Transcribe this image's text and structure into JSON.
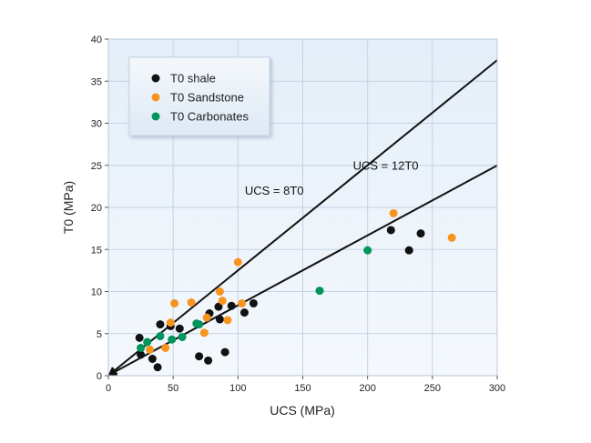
{
  "chart_data": {
    "type": "scatter",
    "title": "",
    "xlabel": "UCS (MPa)",
    "ylabel": "T0 (MPa)",
    "xlim": [
      0,
      300
    ],
    "ylim": [
      0,
      40
    ],
    "xticks": [
      0,
      50,
      100,
      150,
      200,
      250,
      300
    ],
    "yticks": [
      0,
      5,
      10,
      15,
      20,
      25,
      30,
      35,
      40
    ],
    "grid": true,
    "legend_position": "top-left",
    "series": [
      {
        "name": "T0 shale",
        "color": "#111111",
        "points": [
          {
            "x": 24,
            "y": 4.5
          },
          {
            "x": 25,
            "y": 2.5
          },
          {
            "x": 34,
            "y": 2.0
          },
          {
            "x": 38,
            "y": 1.0
          },
          {
            "x": 40,
            "y": 6.1
          },
          {
            "x": 48,
            "y": 5.9
          },
          {
            "x": 55,
            "y": 5.6
          },
          {
            "x": 70,
            "y": 2.3
          },
          {
            "x": 77,
            "y": 1.8
          },
          {
            "x": 78,
            "y": 7.4
          },
          {
            "x": 85,
            "y": 8.2
          },
          {
            "x": 86,
            "y": 6.7
          },
          {
            "x": 90,
            "y": 2.8
          },
          {
            "x": 95,
            "y": 8.3
          },
          {
            "x": 105,
            "y": 7.5
          },
          {
            "x": 112,
            "y": 8.6
          },
          {
            "x": 218,
            "y": 17.3
          },
          {
            "x": 232,
            "y": 14.9
          },
          {
            "x": 241,
            "y": 16.9
          }
        ]
      },
      {
        "name": "T0 Sandstone",
        "color": "#f7941d",
        "points": [
          {
            "x": 32,
            "y": 3.1
          },
          {
            "x": 44,
            "y": 3.3
          },
          {
            "x": 48,
            "y": 6.3
          },
          {
            "x": 51,
            "y": 8.6
          },
          {
            "x": 64,
            "y": 8.7
          },
          {
            "x": 74,
            "y": 5.1
          },
          {
            "x": 76,
            "y": 6.9
          },
          {
            "x": 86,
            "y": 10.0
          },
          {
            "x": 88,
            "y": 8.9
          },
          {
            "x": 92,
            "y": 6.6
          },
          {
            "x": 100,
            "y": 13.5
          },
          {
            "x": 103,
            "y": 8.6
          },
          {
            "x": 220,
            "y": 19.3
          },
          {
            "x": 265,
            "y": 16.4
          }
        ]
      },
      {
        "name": "T0 Carbonates",
        "color": "#00955a",
        "points": [
          {
            "x": 25,
            "y": 3.3
          },
          {
            "x": 30,
            "y": 4.0
          },
          {
            "x": 40,
            "y": 4.7
          },
          {
            "x": 49,
            "y": 4.3
          },
          {
            "x": 57,
            "y": 4.6
          },
          {
            "x": 68,
            "y": 6.2
          },
          {
            "x": 70,
            "y": 6.1
          },
          {
            "x": 163,
            "y": 10.1
          },
          {
            "x": 200,
            "y": 14.9
          }
        ]
      }
    ],
    "reference_lines": [
      {
        "label": "UCS = 8T0",
        "slope": 0.125,
        "label_at": {
          "x": 128,
          "y": 21.5
        }
      },
      {
        "label": "UCS = 12T0",
        "slope": 0.0833,
        "label_at": {
          "x": 214,
          "y": 24.5
        }
      }
    ]
  }
}
